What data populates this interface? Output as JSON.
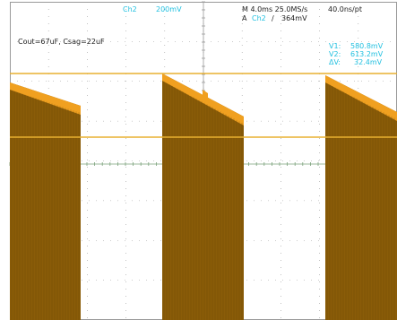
{
  "header": {
    "channel": "Ch2",
    "scale": "200mV",
    "timebase": "M 4.0ms 25.0MS/s",
    "resolution": "40.0ns/pt",
    "trigger_mode": "A",
    "trigger_channel": "Ch2",
    "trigger_slope": "∕",
    "trigger_level": "364mV"
  },
  "annotation": "Cout=67uF, Csag=22uF",
  "cursors": {
    "v1_label": "V1:",
    "v1_value": "580.8mV",
    "v2_label": "V2:",
    "v2_value": "613.2mV",
    "dv_label": "ΔV:",
    "dv_value": "32.4mV"
  },
  "colors": {
    "background": "#ffffff",
    "grid": "#9a9a9a",
    "trace_dark": "#8a5c08",
    "trace_light": "#f0a020",
    "cursor": "#e8b030",
    "readout": "#22c0e0",
    "text": "#222222"
  }
}
